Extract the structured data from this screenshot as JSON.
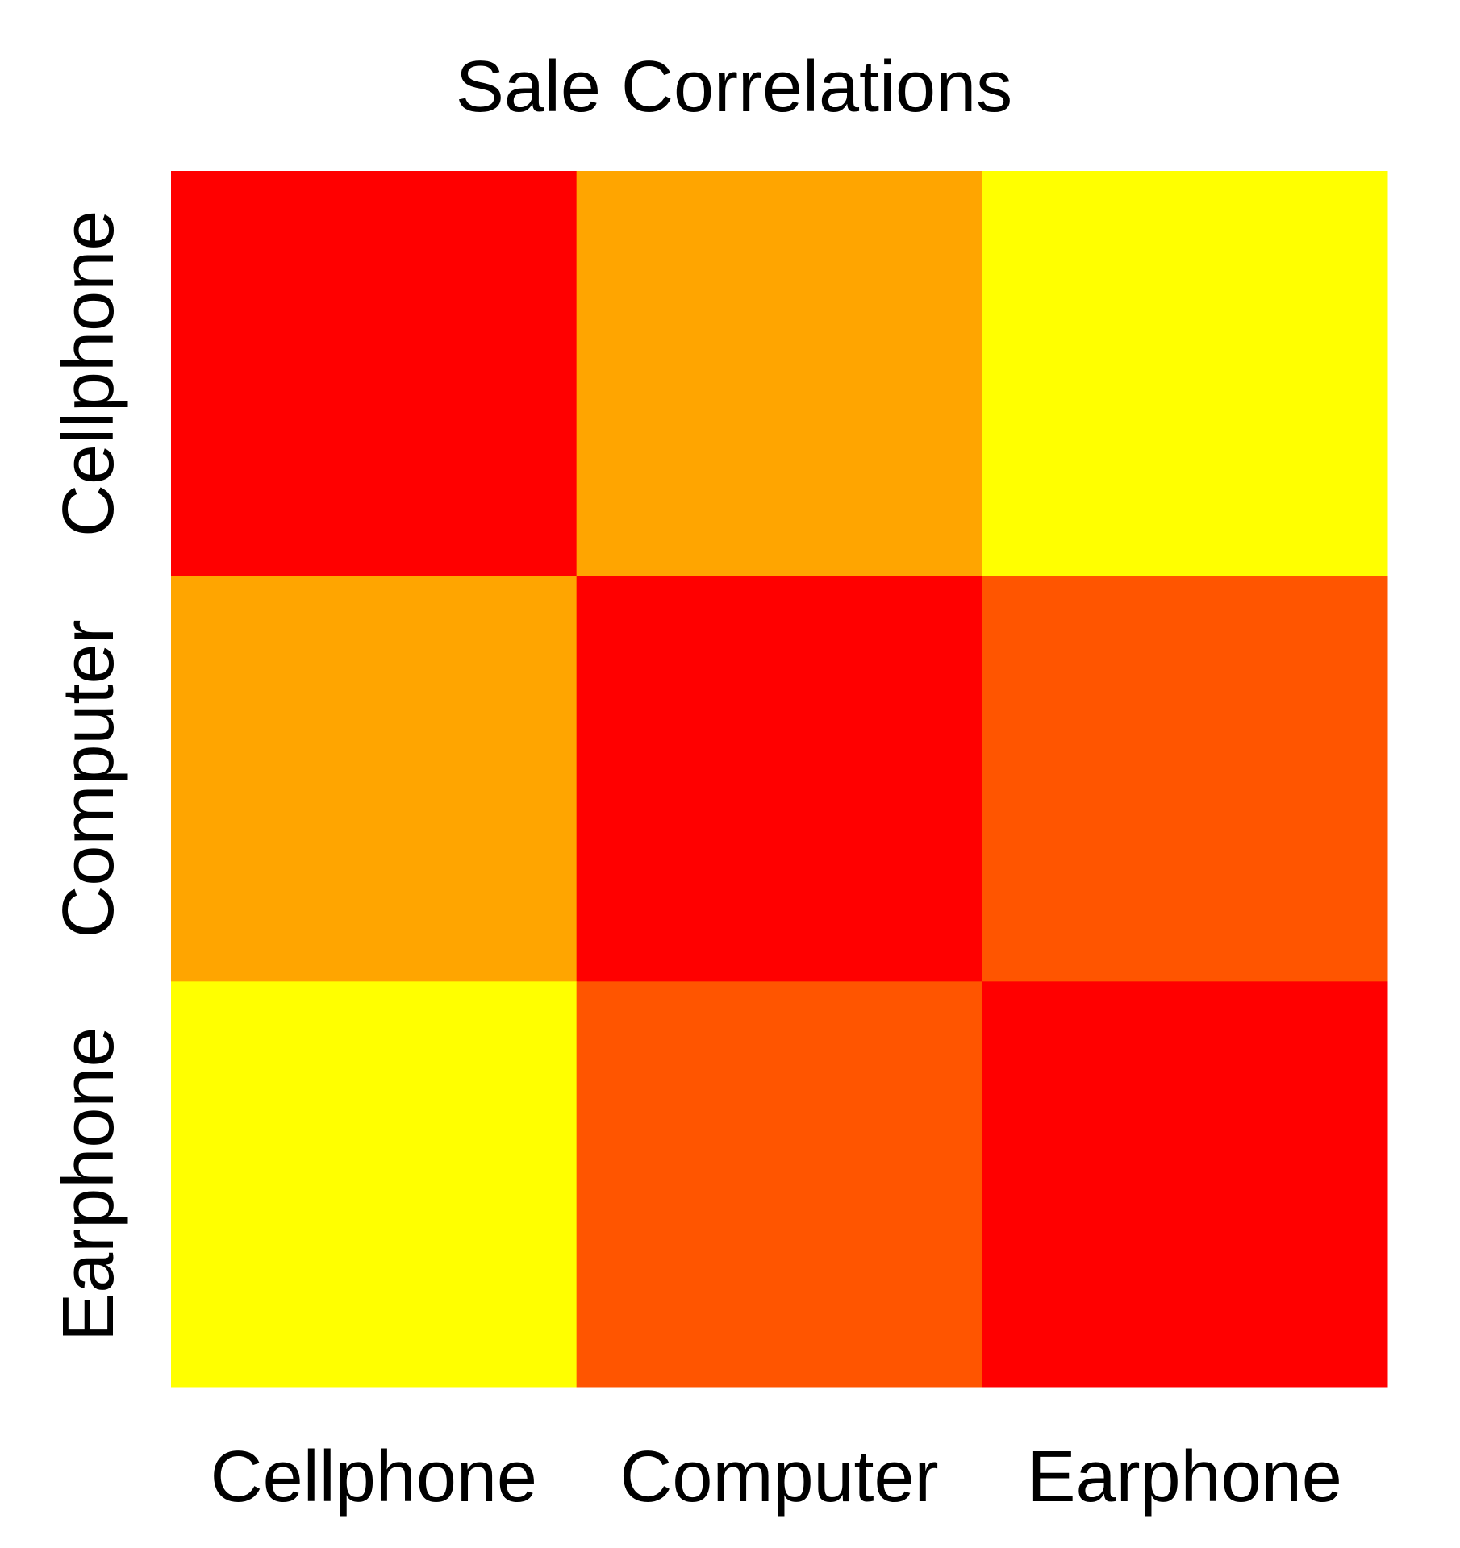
{
  "chart_data": {
    "type": "heatmap",
    "title": "Sale Correlations",
    "xlabel": "",
    "ylabel": "",
    "x_categories": [
      "Cellphone",
      "Computer",
      "Earphone"
    ],
    "y_categories": [
      "Cellphone",
      "Computer",
      "Earphone"
    ],
    "values": [
      [
        1.0,
        0.5,
        0.1
      ],
      [
        0.5,
        1.0,
        0.8
      ],
      [
        0.1,
        0.8,
        1.0
      ]
    ],
    "cell_colors": [
      [
        "#FF0000",
        "#FFA500",
        "#FFFF00"
      ],
      [
        "#FFA500",
        "#FF0000",
        "#FF5500"
      ],
      [
        "#FFFF00",
        "#FF5500",
        "#FF0000"
      ]
    ],
    "grid": false,
    "legend": "none"
  }
}
